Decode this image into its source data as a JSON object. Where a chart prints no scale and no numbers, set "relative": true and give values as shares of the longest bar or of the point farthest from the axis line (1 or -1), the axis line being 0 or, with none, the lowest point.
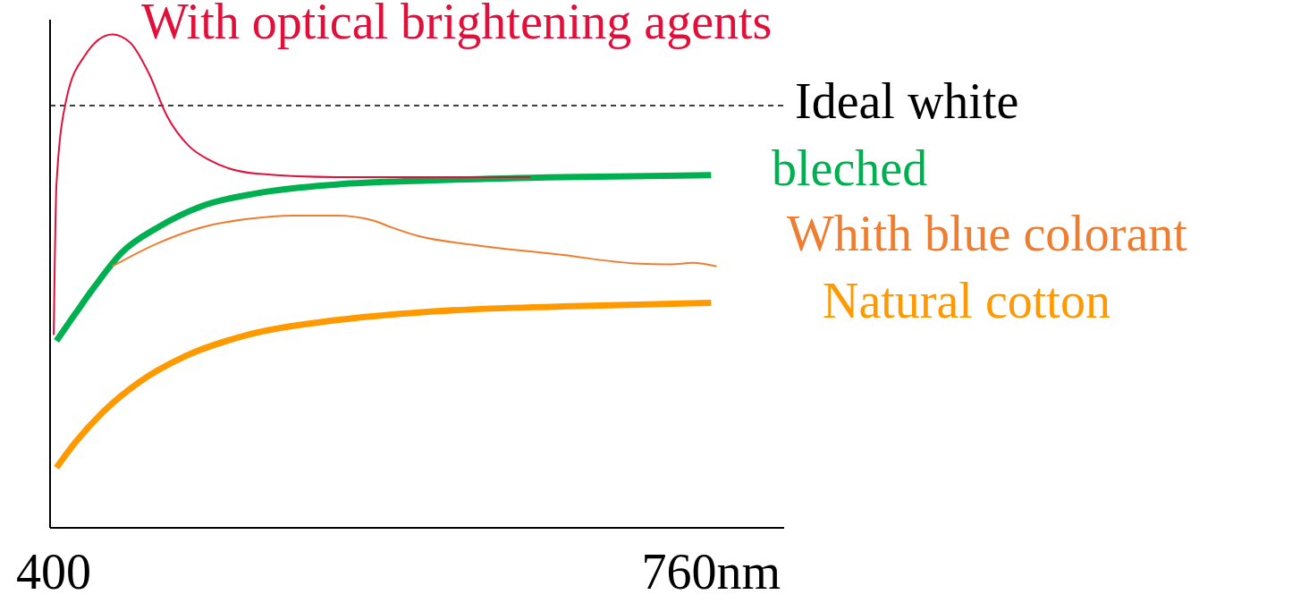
{
  "chart_data": {
    "type": "line",
    "relative": true,
    "legend": false,
    "marker": "none",
    "line_style": "solid",
    "xlim": [
      398,
      800
    ],
    "xticks": [
      {
        "value": 400,
        "label": "400"
      },
      {
        "value": 760,
        "label": "760nm"
      }
    ],
    "series": [
      {
        "name": "With optical brightening agents",
        "color": "#e0103a",
        "x": [
          400,
          401.5,
          407,
          417,
          432,
          442,
          452,
          462,
          474,
          486,
          511,
          555,
          605,
          661
        ],
        "values": [
          0.391,
          0.696,
          0.87,
          0.957,
          1,
          0.983,
          0.922,
          0.835,
          0.774,
          0.744,
          0.718,
          0.711,
          0.711,
          0.711
        ]
      },
      {
        "name": "bleched",
        "color": "#00b050",
        "x": [
          401.5,
          412,
          422,
          437,
          457,
          481,
          511,
          555,
          605,
          679,
          760
        ],
        "values": [
          0.379,
          0.435,
          0.487,
          0.557,
          0.609,
          0.652,
          0.678,
          0.696,
          0.704,
          0.711,
          0.715
        ]
      },
      {
        "name": "Whith blue colorant",
        "color": "#ed7d31",
        "x": [
          432,
          457,
          481,
          506,
          531,
          555,
          575,
          585,
          600,
          629,
          679,
          718,
          738,
          750,
          763
        ],
        "values": [
          0.53,
          0.577,
          0.609,
          0.626,
          0.633,
          0.633,
          0.623,
          0.609,
          0.591,
          0.574,
          0.553,
          0.536,
          0.534,
          0.537,
          0.53
        ]
      },
      {
        "name": "Natural cotton",
        "color": "#ff9900",
        "x": [
          401.5,
          412,
          427,
          447,
          472,
          506,
          555,
          605,
          679,
          760
        ],
        "values": [
          0.122,
          0.174,
          0.235,
          0.296,
          0.348,
          0.391,
          0.421,
          0.438,
          0.449,
          0.456
        ]
      }
    ],
    "ref_lines": [
      {
        "axis": "y",
        "value": 0.856,
        "label": "Ideal white",
        "color": "#000000",
        "line_style": "dashed"
      }
    ]
  }
}
